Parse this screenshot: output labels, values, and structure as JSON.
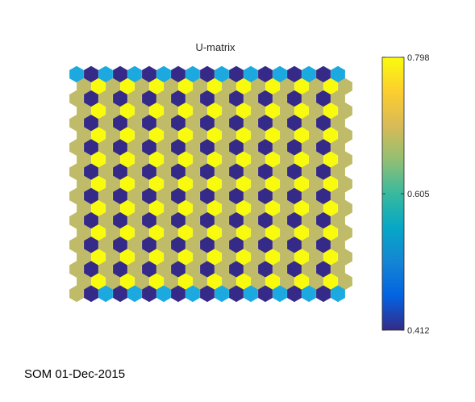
{
  "footer": "SOM 01-Dec-2015",
  "chart_data": {
    "type": "heatmap",
    "subtype": "som-u-matrix-hexagonal",
    "title": "U-matrix",
    "grid": false,
    "rows": 19,
    "cols": 19,
    "colormap": "parula",
    "colorbar": {
      "position": "right",
      "min": 0.412,
      "max": 0.798,
      "tick_values": [
        0.412,
        0.605,
        0.798
      ],
      "tick_labels": [
        "0.412",
        "0.605",
        "0.798"
      ]
    },
    "level_values": {
      "dark": 0.412,
      "cyan": 0.56,
      "olive": 0.72,
      "yellow": 0.798
    },
    "legend_colors": {
      "dark": "#352a87",
      "cyan": "#1ca9e0",
      "olive": "#bfbb68",
      "yellow": "#f9fb0e"
    },
    "row_codes": [
      "cdcdcdcdcdcdcdcdcdc",
      "ayayayayayayayayaya",
      "adadadadadadadadada",
      "ayayayayayayayayaya",
      "adadadadadadadadada",
      "ayayayayayayayayaya",
      "adadadadadadadadada",
      "ayayayayayayayayaya",
      "adadadadadadadadada",
      "ayayayayayayayayaya",
      "adadadadadadadadada",
      "ayayayayayayayayaya",
      "adadadadadadadadada",
      "ayayayayayayayayaya",
      "adadadadadadadadada",
      "ayayayayayayayayaya",
      "adadadadadadadadada",
      "ayayayayayayayayaya",
      "adcdcdcdcdcdcdcdcdc"
    ]
  }
}
